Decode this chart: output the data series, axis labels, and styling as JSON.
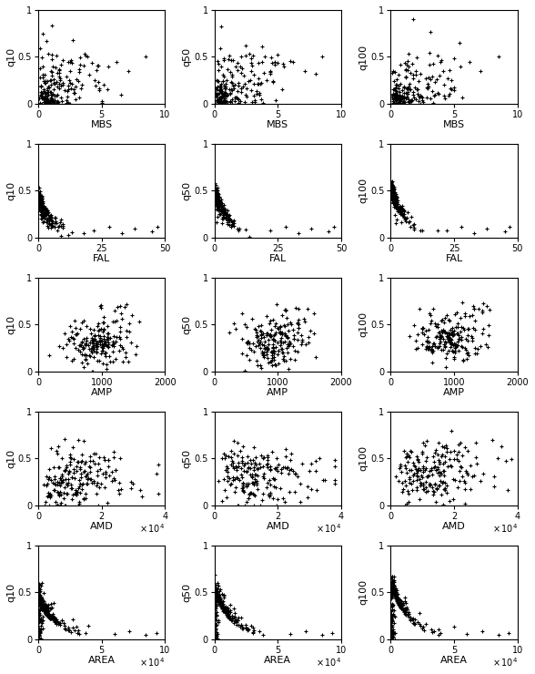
{
  "quantiles": [
    "q10",
    "q50",
    "q100"
  ],
  "variables": [
    "MBS",
    "FAL",
    "AMP",
    "AMD",
    "AREA"
  ],
  "xlims": {
    "MBS": [
      0,
      10
    ],
    "FAL": [
      0,
      50
    ],
    "AMP": [
      0,
      2000
    ],
    "AMD": [
      0,
      40000
    ],
    "AREA": [
      0,
      100000
    ]
  },
  "ylim": [
    0,
    1
  ],
  "yticks": [
    0,
    0.5,
    1
  ],
  "yticklabels": [
    "0",
    "0.5",
    "1"
  ],
  "xticks": {
    "MBS": [
      0,
      5,
      10
    ],
    "FAL": [
      0,
      25,
      50
    ],
    "AMP": [
      0,
      1000,
      2000
    ],
    "AMD": [
      0,
      20000,
      40000
    ],
    "AREA": [
      0,
      50000,
      100000
    ]
  },
  "xticklabels": {
    "MBS": [
      "0",
      "5",
      "10"
    ],
    "FAL": [
      "0",
      "25",
      "50"
    ],
    "AMP": [
      "0",
      "1000",
      "2000"
    ],
    "AMD": [
      "0",
      "2",
      "4"
    ],
    "AREA": [
      "0",
      "5",
      "10"
    ]
  },
  "scale_label": {
    "MBS": "",
    "FAL": "",
    "AMP": "",
    "AMD": "x 10^4",
    "AREA": "x 10^4"
  },
  "marker": "+",
  "markersize": 3.5,
  "markeredgewidth": 0.8,
  "color": "black",
  "alpha": 1.0,
  "figsize": [
    5.88,
    7.4
  ],
  "dpi": 100
}
